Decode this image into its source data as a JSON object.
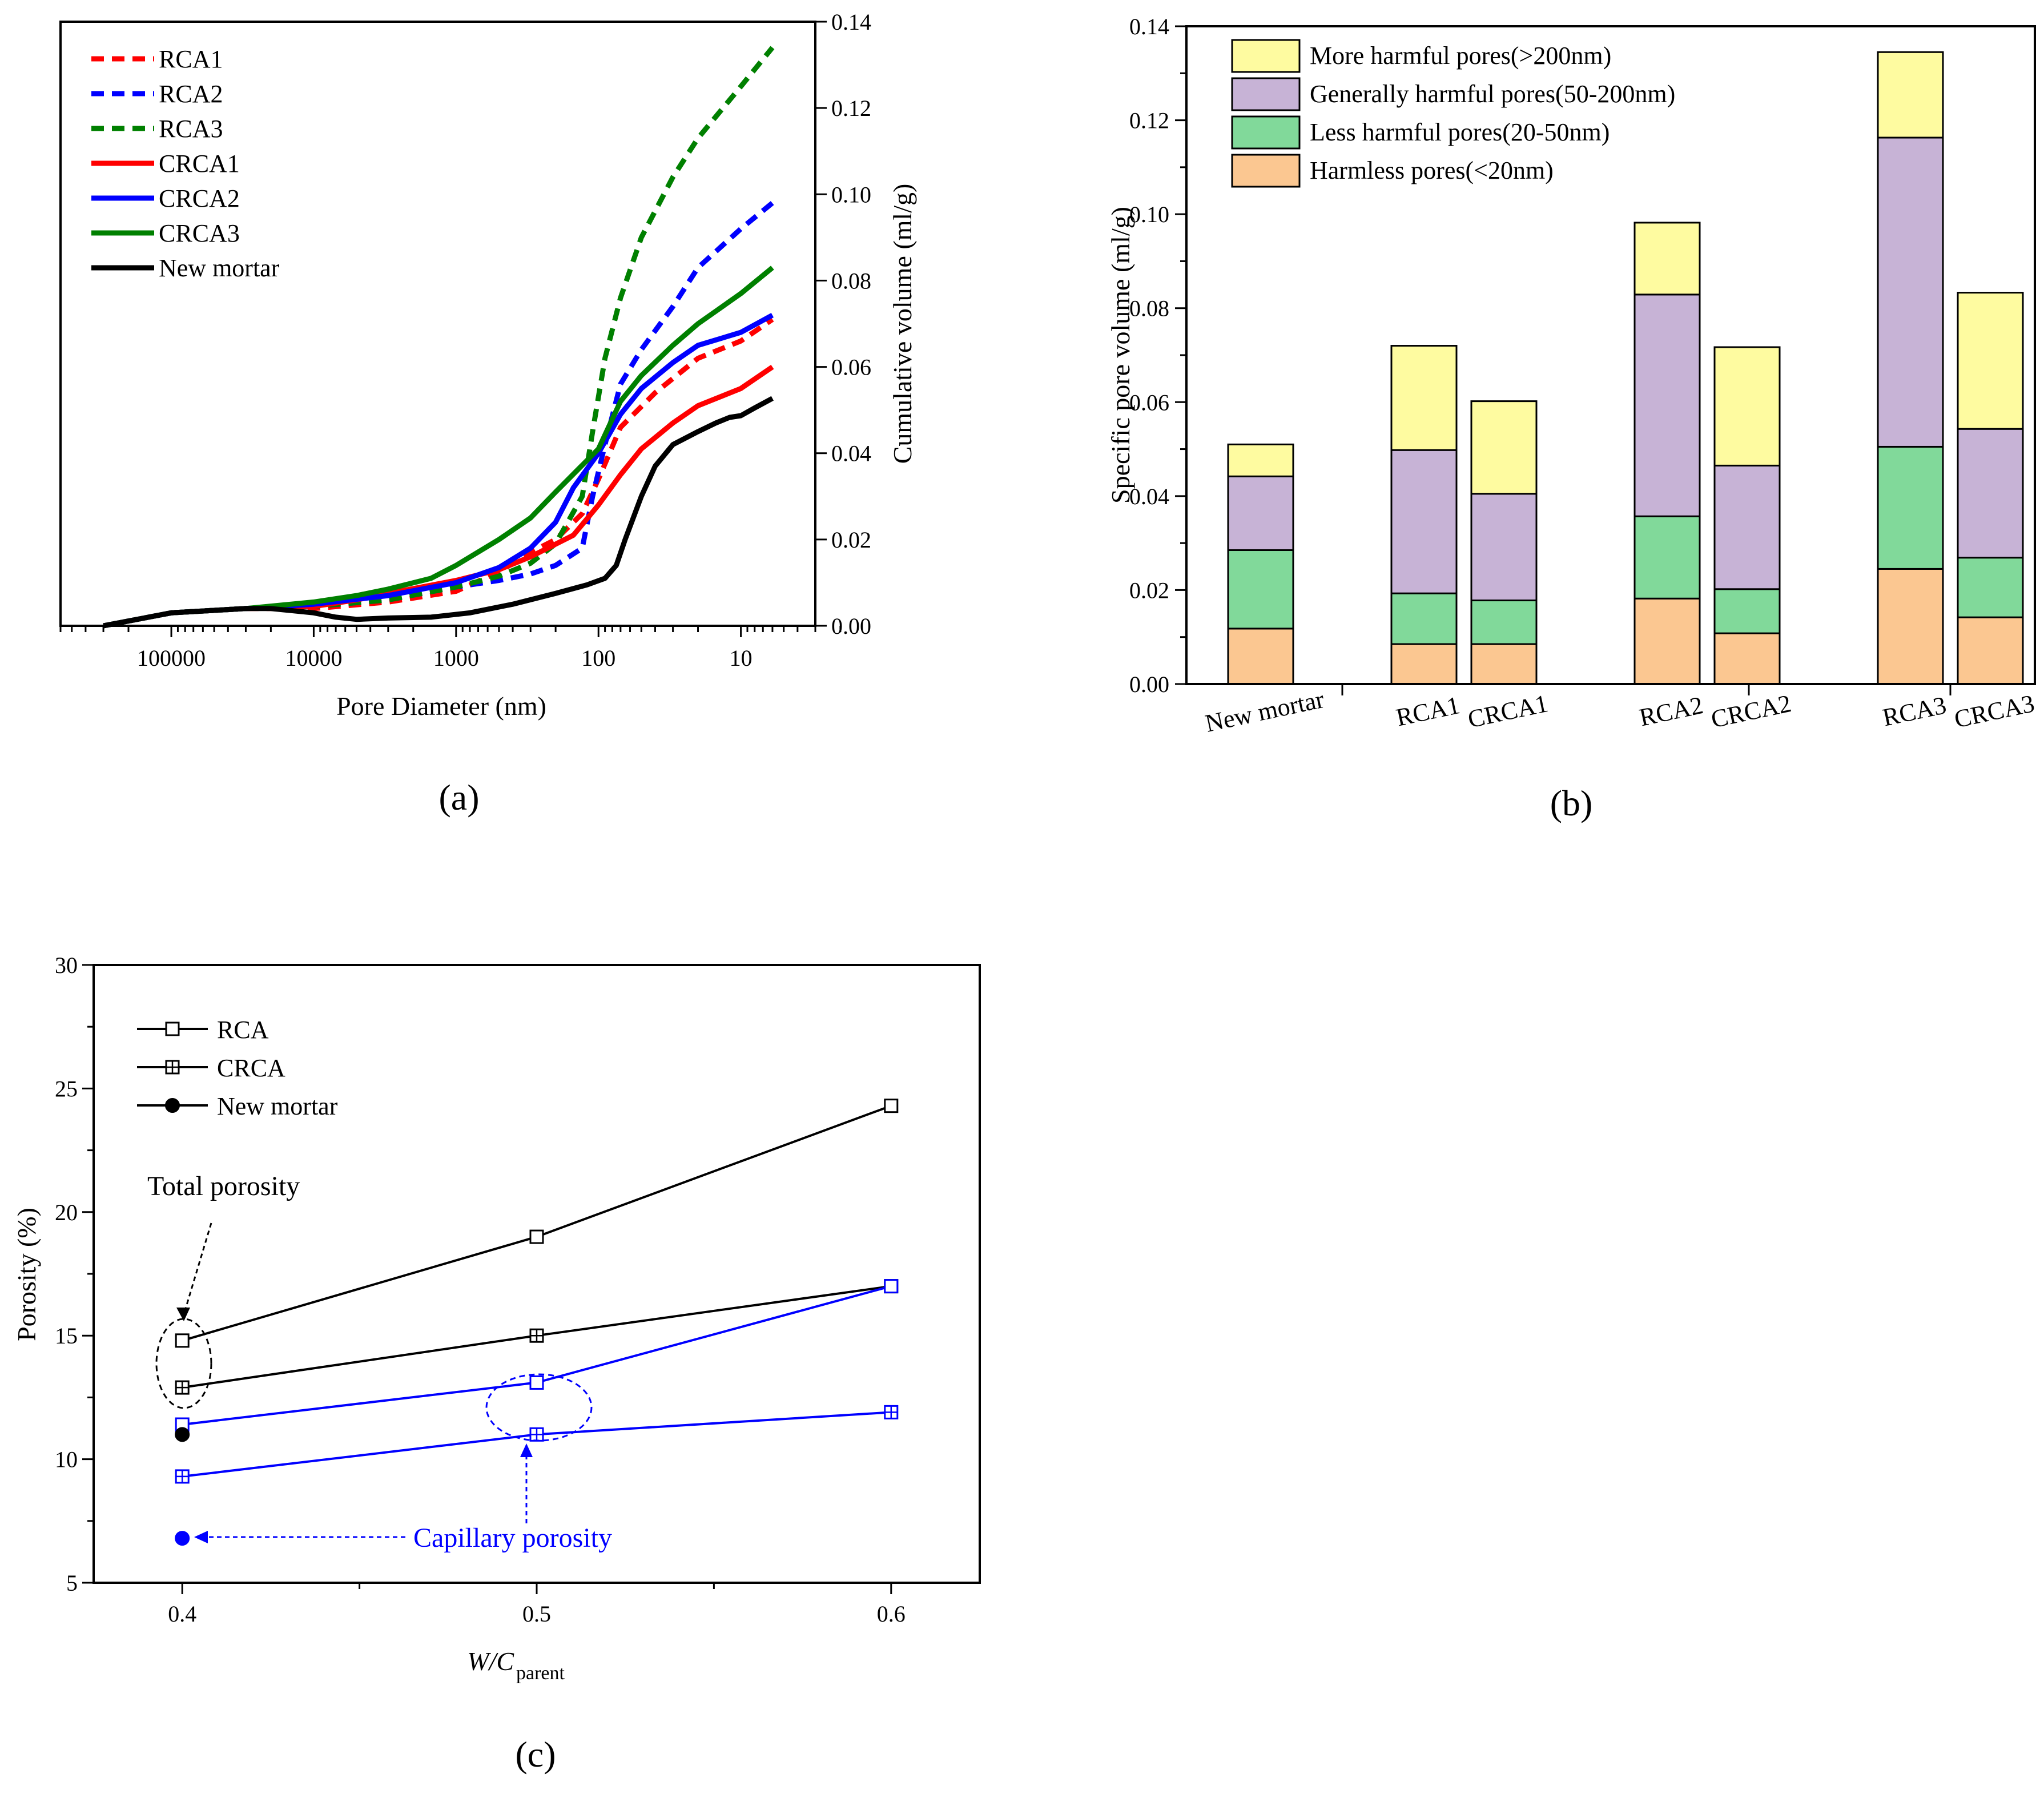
{
  "figure": {
    "panel_labels": [
      "(a)",
      "(b)",
      "(c)"
    ]
  },
  "chart_data": [
    {
      "id": "a",
      "type": "line",
      "xlabel": "Pore Diameter (nm)",
      "ylabel": "Cumulative volume (ml/g)",
      "x_scale": "log-reversed",
      "xlim": [
        600000,
        3
      ],
      "ylim": [
        0,
        0.14
      ],
      "x_ticks": [
        {
          "v": 100000,
          "label": "100000"
        },
        {
          "v": 10000,
          "label": "10000"
        },
        {
          "v": 1000,
          "label": "1000"
        },
        {
          "v": 100,
          "label": "100"
        },
        {
          "v": 10,
          "label": "10"
        }
      ],
      "y_ticks": [
        {
          "v": 0,
          "label": "0.00"
        },
        {
          "v": 0.02,
          "label": "0.02"
        },
        {
          "v": 0.04,
          "label": "0.04"
        },
        {
          "v": 0.06,
          "label": "0.06"
        },
        {
          "v": 0.08,
          "label": "0.08"
        },
        {
          "v": 0.1,
          "label": "0.10"
        },
        {
          "v": 0.12,
          "label": "0.12"
        },
        {
          "v": 0.14,
          "label": "0.14"
        }
      ],
      "series": [
        {
          "name": "RCA1",
          "color": "#ff0000",
          "dashed": true,
          "points": [
            [
              300000,
              0
            ],
            [
              100000,
              0.003
            ],
            [
              30000,
              0.004
            ],
            [
              10000,
              0.004
            ],
            [
              3000,
              0.0055
            ],
            [
              1000,
              0.008
            ],
            [
              500,
              0.0125
            ],
            [
              300,
              0.017
            ],
            [
              200,
              0.02
            ],
            [
              130,
              0.026
            ],
            [
              100,
              0.034
            ],
            [
              70,
              0.046
            ],
            [
              40,
              0.054
            ],
            [
              20,
              0.062
            ],
            [
              10,
              0.066
            ],
            [
              6,
              0.071
            ]
          ]
        },
        {
          "name": "RCA2",
          "color": "#0000ff",
          "dashed": true,
          "points": [
            [
              300000,
              0
            ],
            [
              100000,
              0.003
            ],
            [
              30000,
              0.004
            ],
            [
              10000,
              0.0045
            ],
            [
              3000,
              0.006
            ],
            [
              1000,
              0.009
            ],
            [
              500,
              0.0105
            ],
            [
              300,
              0.012
            ],
            [
              200,
              0.014
            ],
            [
              130,
              0.018
            ],
            [
              110,
              0.03
            ],
            [
              90,
              0.042
            ],
            [
              70,
              0.056
            ],
            [
              50,
              0.064
            ],
            [
              30,
              0.074
            ],
            [
              20,
              0.083
            ],
            [
              10,
              0.092
            ],
            [
              6,
              0.098
            ]
          ]
        },
        {
          "name": "RCA3",
          "color": "#008000",
          "dashed": true,
          "points": [
            [
              300000,
              0
            ],
            [
              100000,
              0.003
            ],
            [
              30000,
              0.004
            ],
            [
              10000,
              0.0045
            ],
            [
              3000,
              0.006
            ],
            [
              1000,
              0.009
            ],
            [
              500,
              0.0115
            ],
            [
              300,
              0.0145
            ],
            [
              200,
              0.019
            ],
            [
              130,
              0.03
            ],
            [
              110,
              0.045
            ],
            [
              90,
              0.062
            ],
            [
              70,
              0.076
            ],
            [
              50,
              0.09
            ],
            [
              30,
              0.104
            ],
            [
              20,
              0.113
            ],
            [
              10,
              0.125
            ],
            [
              6,
              0.134
            ]
          ]
        },
        {
          "name": "CRCA1",
          "color": "#ff0000",
          "dashed": false,
          "points": [
            [
              300000,
              0
            ],
            [
              100000,
              0.003
            ],
            [
              30000,
              0.004
            ],
            [
              10000,
              0.0045
            ],
            [
              5000,
              0.006
            ],
            [
              3000,
              0.0075
            ],
            [
              1000,
              0.0105
            ],
            [
              500,
              0.013
            ],
            [
              300,
              0.016
            ],
            [
              150,
              0.021
            ],
            [
              100,
              0.028
            ],
            [
              70,
              0.035
            ],
            [
              50,
              0.041
            ],
            [
              30,
              0.047
            ],
            [
              20,
              0.051
            ],
            [
              10,
              0.055
            ],
            [
              6,
              0.06
            ]
          ]
        },
        {
          "name": "CRCA2",
          "color": "#0000ff",
          "dashed": false,
          "points": [
            [
              300000,
              0
            ],
            [
              100000,
              0.003
            ],
            [
              30000,
              0.004
            ],
            [
              10000,
              0.005
            ],
            [
              3000,
              0.007
            ],
            [
              1000,
              0.01
            ],
            [
              500,
              0.0135
            ],
            [
              300,
              0.018
            ],
            [
              200,
              0.024
            ],
            [
              150,
              0.032
            ],
            [
              100,
              0.04
            ],
            [
              70,
              0.049
            ],
            [
              50,
              0.055
            ],
            [
              30,
              0.061
            ],
            [
              20,
              0.065
            ],
            [
              10,
              0.068
            ],
            [
              6,
              0.072
            ]
          ]
        },
        {
          "name": "CRCA3",
          "color": "#008000",
          "dashed": false,
          "points": [
            [
              300000,
              0
            ],
            [
              100000,
              0.003
            ],
            [
              30000,
              0.004
            ],
            [
              10000,
              0.0055
            ],
            [
              5000,
              0.007
            ],
            [
              3000,
              0.0085
            ],
            [
              1500,
              0.011
            ],
            [
              1000,
              0.014
            ],
            [
              500,
              0.02
            ],
            [
              300,
              0.025
            ],
            [
              200,
              0.031
            ],
            [
              100,
              0.041
            ],
            [
              70,
              0.052
            ],
            [
              50,
              0.058
            ],
            [
              30,
              0.065
            ],
            [
              20,
              0.07
            ],
            [
              10,
              0.077
            ],
            [
              6,
              0.083
            ]
          ]
        },
        {
          "name": "New mortar",
          "color": "#000000",
          "dashed": false,
          "points": [
            [
              300000,
              0
            ],
            [
              100000,
              0.003
            ],
            [
              30000,
              0.004
            ],
            [
              20000,
              0.004
            ],
            [
              10000,
              0.003
            ],
            [
              7000,
              0.002
            ],
            [
              5000,
              0.0015
            ],
            [
              3000,
              0.0018
            ],
            [
              1500,
              0.002
            ],
            [
              800,
              0.003
            ],
            [
              400,
              0.005
            ],
            [
              200,
              0.0075
            ],
            [
              120,
              0.0095
            ],
            [
              90,
              0.011
            ],
            [
              75,
              0.014
            ],
            [
              65,
              0.02
            ],
            [
              50,
              0.03
            ],
            [
              40,
              0.037
            ],
            [
              30,
              0.042
            ],
            [
              20,
              0.045
            ],
            [
              15,
              0.047
            ],
            [
              12,
              0.0483
            ],
            [
              10,
              0.0487
            ],
            [
              8,
              0.0505
            ],
            [
              6,
              0.0527
            ]
          ]
        }
      ]
    },
    {
      "id": "b",
      "type": "bar",
      "stacked": true,
      "ylabel": "Specific pore volume (ml/g)",
      "ylim": [
        0,
        0.14
      ],
      "y_ticks": [
        {
          "v": 0,
          "label": "0.00"
        },
        {
          "v": 0.02,
          "label": "0.02"
        },
        {
          "v": 0.04,
          "label": "0.04"
        },
        {
          "v": 0.06,
          "label": "0.06"
        },
        {
          "v": 0.08,
          "label": "0.08"
        },
        {
          "v": 0.1,
          "label": "0.10"
        },
        {
          "v": 0.12,
          "label": "0.12"
        },
        {
          "v": 0.14,
          "label": "0.14"
        }
      ],
      "categories": [
        "New mortar",
        "RCA1",
        "CRCA1",
        "RCA2",
        "CRCA2",
        "RCA3",
        "CRCA3"
      ],
      "series": [
        {
          "name": "Harmless pores(<20nm)",
          "color": "#fbc791",
          "values": [
            0.0118,
            0.0085,
            0.0085,
            0.0182,
            0.0108,
            0.0245,
            0.0142
          ]
        },
        {
          "name": "Less harmful pores(20-50nm)",
          "color": "#81d99a",
          "values": [
            0.0167,
            0.0108,
            0.0093,
            0.0175,
            0.0094,
            0.026,
            0.0127
          ]
        },
        {
          "name": "Generally harmful pores(50-200nm)",
          "color": "#c7b3d6",
          "values": [
            0.0157,
            0.0305,
            0.0227,
            0.0472,
            0.0263,
            0.0658,
            0.0274
          ]
        },
        {
          "name": "More harmful pores(>200nm)",
          "color": "#fefba0",
          "values": [
            0.0068,
            0.0222,
            0.0197,
            0.0153,
            0.0252,
            0.0182,
            0.029
          ]
        }
      ]
    },
    {
      "id": "c",
      "type": "line",
      "xlabel_main": "W/C",
      "xlabel_sub": "parent",
      "ylabel": "Porosity (%)",
      "xlim": [
        0.375,
        0.625
      ],
      "ylim": [
        5,
        30
      ],
      "x_ticks": [
        {
          "v": 0.4,
          "label": "0.4"
        },
        {
          "v": 0.5,
          "label": "0.5"
        },
        {
          "v": 0.6,
          "label": "0.6"
        }
      ],
      "y_ticks": [
        {
          "v": 5,
          "label": "5"
        },
        {
          "v": 10,
          "label": "10"
        },
        {
          "v": 15,
          "label": "15"
        },
        {
          "v": 20,
          "label": "20"
        },
        {
          "v": 25,
          "label": "25"
        },
        {
          "v": 30,
          "label": "30"
        }
      ],
      "legend": [
        {
          "name": "RCA",
          "marker": "square"
        },
        {
          "name": "CRCA",
          "marker": "square-cross"
        },
        {
          "name": "New mortar",
          "marker": "circle"
        }
      ],
      "series": [
        {
          "name": "RCA total porosity",
          "color": "#000000",
          "marker": "square",
          "x": [
            0.4,
            0.5,
            0.6
          ],
          "y": [
            14.8,
            19,
            24.3
          ]
        },
        {
          "name": "CRCA total porosity",
          "color": "#000000",
          "marker": "square-cross",
          "x": [
            0.4,
            0.5,
            0.6
          ],
          "y": [
            12.9,
            15,
            17
          ]
        },
        {
          "name": "RCA capillary porosity",
          "color": "#0000ff",
          "marker": "square",
          "x": [
            0.4,
            0.5,
            0.6
          ],
          "y": [
            11.4,
            13.1,
            17
          ]
        },
        {
          "name": "CRCA capillary porosity",
          "color": "#0000ff",
          "marker": "square-cross",
          "x": [
            0.4,
            0.5,
            0.6
          ],
          "y": [
            9.3,
            11,
            11.9
          ]
        },
        {
          "name": "New mortar total porosity",
          "color": "#000000",
          "marker": "circle",
          "x": [
            0.4
          ],
          "y": [
            11
          ]
        },
        {
          "name": "New mortar capillary porosity",
          "color": "#0000ff",
          "marker": "circle",
          "x": [
            0.4
          ],
          "y": [
            6.8
          ]
        }
      ],
      "annotations": [
        {
          "text": "Total porosity",
          "color": "#000000"
        },
        {
          "text": "Capillary porosity",
          "color": "#0000ff"
        }
      ]
    }
  ]
}
